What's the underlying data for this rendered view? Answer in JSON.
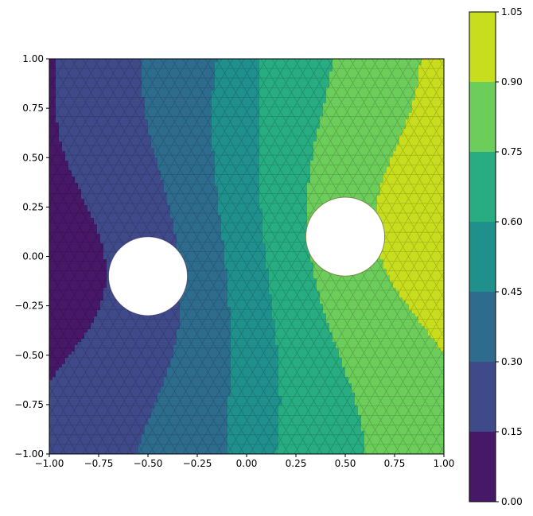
{
  "chart_data": {
    "type": "contour",
    "title": "",
    "xlabel": "",
    "ylabel": "",
    "xlim": [
      -1.0,
      1.0
    ],
    "ylim": [
      -1.0,
      1.0
    ],
    "xticks": [
      "−1.00",
      "−0.75",
      "−0.50",
      "−0.25",
      "0.00",
      "0.25",
      "0.50",
      "0.75",
      "1.00"
    ],
    "yticks": [
      "−1.00",
      "−0.75",
      "−0.50",
      "−0.25",
      "0.00",
      "0.25",
      "0.50",
      "0.75",
      "1.00"
    ],
    "xtick_values": [
      -1.0,
      -0.75,
      -0.5,
      -0.25,
      0.0,
      0.25,
      0.5,
      0.75,
      1.0
    ],
    "ytick_values": [
      -1.0,
      -0.75,
      -0.5,
      -0.25,
      0.0,
      0.25,
      0.5,
      0.75,
      1.0
    ],
    "levels": [
      0.0,
      0.15,
      0.3,
      0.45,
      0.6,
      0.75,
      0.9,
      1.05
    ],
    "colorbar_ticks": [
      "0.00",
      "0.15",
      "0.30",
      "0.45",
      "0.60",
      "0.75",
      "0.90",
      "1.05"
    ],
    "level_colors": [
      "#471768",
      "#3f4a8a",
      "#2e6c8e",
      "#20908d",
      "#27ad81",
      "#6ccd5a",
      "#c8dd1e"
    ],
    "holes": [
      {
        "cx": -0.5,
        "cy": -0.1,
        "r": 0.2
      },
      {
        "cx": 0.5,
        "cy": 0.1,
        "r": 0.2
      }
    ],
    "mesh": "triangular",
    "colormap": "viridis"
  }
}
